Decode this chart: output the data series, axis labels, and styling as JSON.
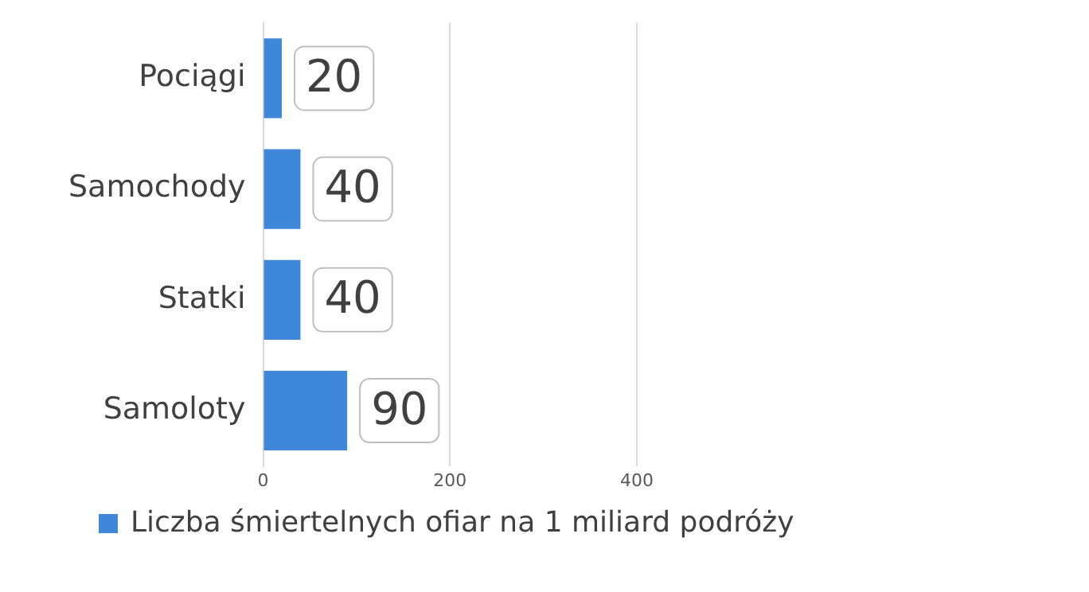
{
  "chart_data": {
    "type": "bar",
    "orientation": "horizontal",
    "categories": [
      "Pociągi",
      "Samochody",
      "Statki",
      "Samoloty"
    ],
    "series": [
      {
        "name": "Liczba śmiertelnych ofiar na 1 miliard podróży",
        "color": "#3f87d8",
        "values": [
          20,
          40,
          40,
          90
        ]
      }
    ],
    "xlim": [
      0,
      400
    ],
    "xticks": [
      0,
      200,
      400
    ],
    "grid": "x",
    "legend": "bottom",
    "data_labels": true
  }
}
